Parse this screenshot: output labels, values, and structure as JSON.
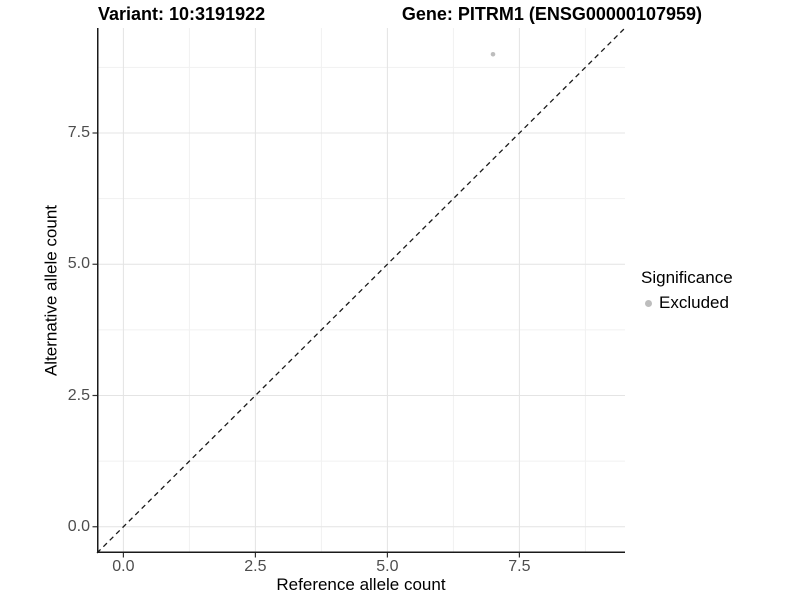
{
  "header": {
    "variant_title": "Variant: 10:3191922",
    "gene_title": "Gene: PITRM1 (ENSG00000107959)"
  },
  "chart_data": {
    "type": "scatter",
    "xlabel": "Reference allele count",
    "ylabel": "Alternative allele count",
    "xlim": [
      -0.5,
      9.5
    ],
    "ylim": [
      -0.5,
      9.5
    ],
    "x_ticks": [
      0.0,
      2.5,
      5.0,
      7.5
    ],
    "y_ticks": [
      0.0,
      2.5,
      5.0,
      7.5
    ],
    "x_tick_labels": [
      "0.0",
      "2.5",
      "5.0",
      "7.5"
    ],
    "y_tick_labels": [
      "0.0",
      "2.5",
      "5.0",
      "7.5"
    ],
    "x_minor_ticks": [
      1.25,
      3.75,
      6.25,
      8.75
    ],
    "y_minor_ticks": [
      1.25,
      3.75,
      6.25,
      8.75
    ],
    "grid": true,
    "identity_line": {
      "style": "dashed",
      "from": -0.5,
      "to": 9.5,
      "color": "#1a1a1a"
    },
    "series": [
      {
        "name": "Excluded",
        "color": "#bdbdbd",
        "points": [
          {
            "x": 7,
            "y": 9
          }
        ]
      }
    ],
    "legend": {
      "position": "right",
      "title": "Significance",
      "items": [
        {
          "label": "Excluded",
          "color": "#bdbdbd"
        }
      ]
    },
    "colors": {
      "grid_major": "#e4e4e4",
      "grid_minor": "#f1f1f1",
      "axis_line": "#1a1a1a",
      "tick_mark": "#333333",
      "tick_label": "#4d4d4d",
      "panel_background": "#ffffff"
    }
  }
}
